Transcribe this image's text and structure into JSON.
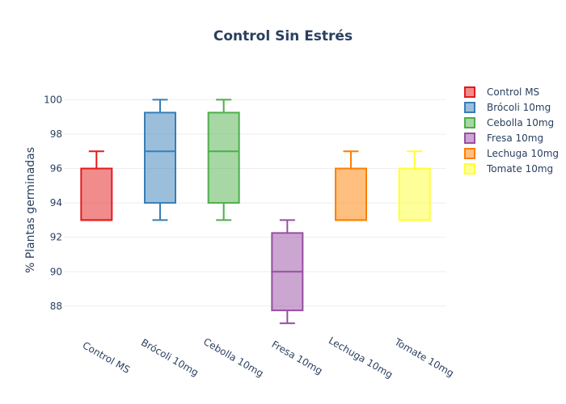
{
  "chart_data": {
    "type": "box",
    "title": "Control Sin Estrés",
    "xlabel": "",
    "ylabel": "% Plantas germinadas",
    "ylim": [
      86.3,
      101.1
    ],
    "yticks": [
      88,
      90,
      92,
      94,
      96,
      98,
      100
    ],
    "grid": true,
    "legend_position": "top-right",
    "categories": [
      "Control MS",
      "Brócoli 10mg",
      "Cebolla 10mg",
      "Fresa 10mg",
      "Lechuga 10mg",
      "Tomate 10mg"
    ],
    "series": [
      {
        "name": "Control MS",
        "color": "#e41a1c",
        "min": 93,
        "q1": 93,
        "median": 93,
        "q3": 96,
        "max": 97
      },
      {
        "name": "Brócoli 10mg",
        "color": "#377eb8",
        "min": 93,
        "q1": 94,
        "median": 97,
        "q3": 99.25,
        "max": 100
      },
      {
        "name": "Cebolla 10mg",
        "color": "#4daf4a",
        "min": 93,
        "q1": 94,
        "median": 97,
        "q3": 99.25,
        "max": 100
      },
      {
        "name": "Fresa 10mg",
        "color": "#984ea3",
        "min": 87,
        "q1": 87.75,
        "median": 90,
        "q3": 92.25,
        "max": 93
      },
      {
        "name": "Lechuga 10mg",
        "color": "#ff7f00",
        "min": 93,
        "q1": 93,
        "median": 93,
        "q3": 96,
        "max": 97
      },
      {
        "name": "Tomate 10mg",
        "color": "#ffff33",
        "min": 93,
        "q1": 93,
        "median": 93,
        "q3": 96,
        "max": 97
      }
    ]
  }
}
